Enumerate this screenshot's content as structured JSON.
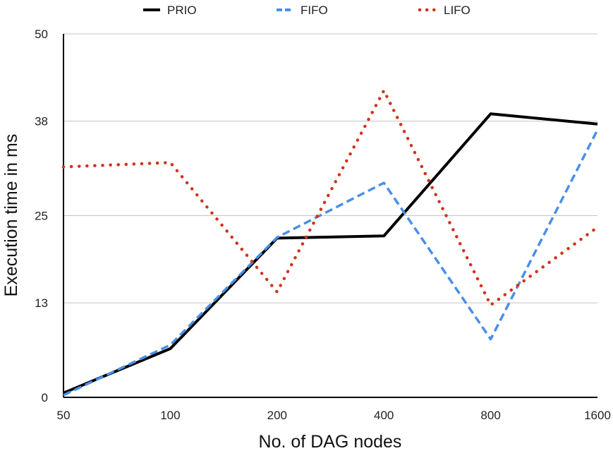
{
  "chart_data": {
    "type": "line",
    "title": "",
    "xlabel": "No. of DAG nodes",
    "ylabel": "Execution time in ms",
    "categories": [
      "50",
      "100",
      "200",
      "400",
      "800",
      "1600"
    ],
    "yticks": [
      "0",
      "13",
      "25",
      "38",
      "50"
    ],
    "ylim": [
      0,
      50
    ],
    "grid": true,
    "legend_position": "top",
    "series": [
      {
        "name": "PRIO",
        "color": "#000000",
        "style": "solid",
        "values": [
          0.6,
          6.7,
          21.9,
          22.2,
          39.0,
          37.6
        ]
      },
      {
        "name": "FIFO",
        "color": "#4a8fe8",
        "style": "dashed",
        "values": [
          0.3,
          7.2,
          22.0,
          29.5,
          8.0,
          36.8
        ]
      },
      {
        "name": "LIFO",
        "color": "#d2321c",
        "style": "dotted",
        "values": [
          31.7,
          32.3,
          14.5,
          42.2,
          12.7,
          23.4
        ]
      }
    ]
  }
}
